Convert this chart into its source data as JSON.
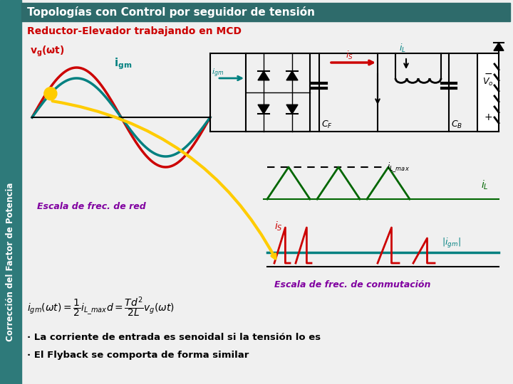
{
  "title": "Topologías con Control por seguidor de tensión",
  "subtitle": "Reductor-Elevador trabajando en MCD",
  "sidebar_text": "Corrección del Factor de Potencia",
  "title_bg": "#2e6b6b",
  "title_fg": "#ffffff",
  "sidebar_bg": "#2e7a7a",
  "main_bg": "#f0f0f0",
  "color_red": "#cc0000",
  "color_teal": "#008080",
  "color_yellow": "#ffcc00",
  "color_green": "#006600",
  "color_purple": "#8000a0",
  "color_black": "#000000",
  "bullet1": "· La corriente de entrada es senoidal si la tensión lo es",
  "bullet2": "· El Flyback se comporta de forma similar",
  "label_escala_red": "Escala de frec. de red",
  "label_escala_comm": "Escala de frec. de conmutación"
}
